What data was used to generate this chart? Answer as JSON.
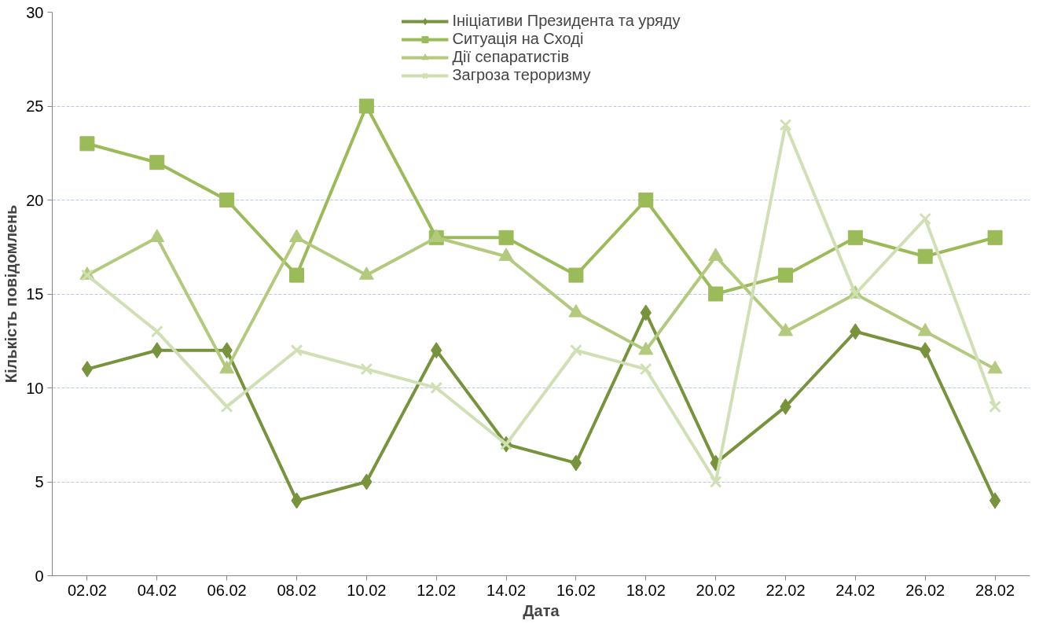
{
  "chart_data": {
    "type": "line",
    "xlabel": "Дата",
    "ylabel": "Кількість повідомлень",
    "categories": [
      "02.02",
      "04.02",
      "06.02",
      "08.02",
      "10.02",
      "12.02",
      "14.02",
      "16.02",
      "18.02",
      "20.02",
      "22.02",
      "24.02",
      "26.02",
      "28.02"
    ],
    "series": [
      {
        "name": "Ініціативи Президента та уряду",
        "color": "#77933c",
        "marker": "diamond",
        "values": [
          11,
          12,
          12,
          4,
          5,
          12,
          7,
          6,
          14,
          6,
          9,
          13,
          12,
          4
        ]
      },
      {
        "name": "Ситуація на Сході",
        "color": "#9bbb59",
        "marker": "square",
        "values": [
          23,
          22,
          20,
          16,
          25,
          18,
          18,
          16,
          20,
          15,
          16,
          18,
          17,
          18
        ]
      },
      {
        "name": "Дії сепаратистів",
        "color": "#b3ca7e",
        "marker": "triangle",
        "values": [
          16,
          18,
          11,
          18,
          16,
          18,
          17,
          14,
          12,
          17,
          13,
          15,
          13,
          11
        ]
      },
      {
        "name": "Загроза тероризму",
        "color": "#d0dfb4",
        "marker": "cross",
        "values": [
          16,
          13,
          9,
          12,
          11,
          10,
          7,
          12,
          11,
          5,
          24,
          15,
          19,
          9
        ]
      }
    ],
    "ylim": [
      0,
      30
    ],
    "yticks": [
      0,
      5,
      10,
      15,
      20,
      25,
      30
    ],
    "grid": "y",
    "legend": "top",
    "line_style": "solid"
  }
}
